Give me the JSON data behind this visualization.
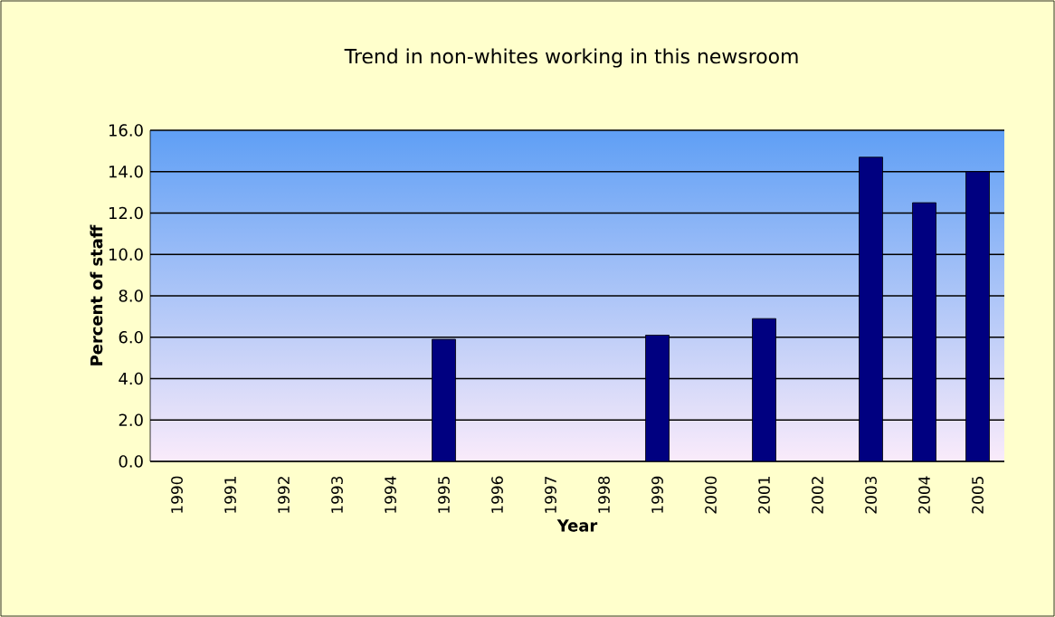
{
  "chart_data": {
    "type": "bar",
    "title": "Trend in non-whites working in this newsroom",
    "xlabel": "Year",
    "ylabel": "Percent of staff",
    "categories": [
      "1990",
      "1991",
      "1992",
      "1993",
      "1994",
      "1995",
      "1996",
      "1997",
      "1998",
      "1999",
      "2000",
      "2001",
      "2002",
      "2003",
      "2004",
      "2005"
    ],
    "values": [
      null,
      null,
      null,
      null,
      null,
      5.9,
      null,
      null,
      null,
      6.1,
      null,
      6.9,
      null,
      14.7,
      12.5,
      14.0
    ],
    "color": "#000080",
    "ylim": [
      0,
      16
    ],
    "yticks": [
      {
        "value": 0,
        "label": "0.0"
      },
      {
        "value": 2,
        "label": "2.0"
      },
      {
        "value": 4,
        "label": "4.0"
      },
      {
        "value": 6,
        "label": "6.0"
      },
      {
        "value": 8,
        "label": "8.0"
      },
      {
        "value": 10,
        "label": "10.0"
      },
      {
        "value": 12,
        "label": "12.0"
      },
      {
        "value": 14,
        "label": "14.0"
      },
      {
        "value": 16,
        "label": "16.0"
      }
    ],
    "grid": "y"
  }
}
